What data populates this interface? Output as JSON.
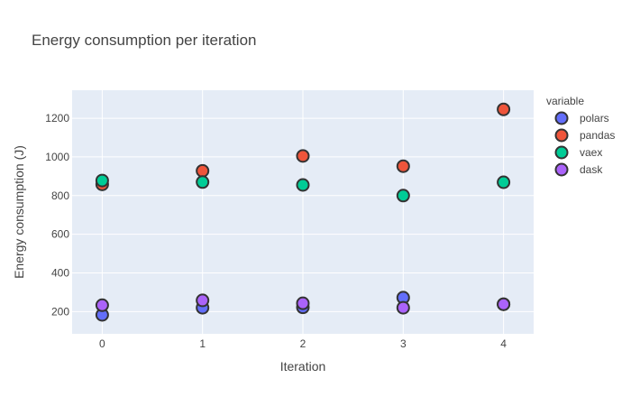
{
  "chart_data": {
    "type": "scatter",
    "title": "Energy consumption per iteration",
    "xlabel": "Iteration",
    "ylabel": "Energy consumption (J)",
    "x": [
      0,
      1,
      2,
      3,
      4
    ],
    "xlim": [
      -0.3,
      4.3
    ],
    "ylim": [
      85,
      1345
    ],
    "xticks": [
      0,
      1,
      2,
      3,
      4
    ],
    "yticks": [
      200,
      400,
      600,
      800,
      1000,
      1200
    ],
    "grid": true,
    "legend": {
      "title": "variable",
      "position": "right"
    },
    "series": [
      {
        "name": "polars",
        "color": "#636efa",
        "values": [
          183,
          220,
          222,
          272,
          238
        ]
      },
      {
        "name": "pandas",
        "color": "#ef553b",
        "values": [
          858,
          928,
          1005,
          952,
          1246
        ]
      },
      {
        "name": "vaex",
        "color": "#00cc96",
        "values": [
          878,
          870,
          855,
          800,
          869
        ]
      },
      {
        "name": "dask",
        "color": "#ab63fa",
        "values": [
          233,
          258,
          243,
          220,
          238
        ]
      }
    ]
  }
}
